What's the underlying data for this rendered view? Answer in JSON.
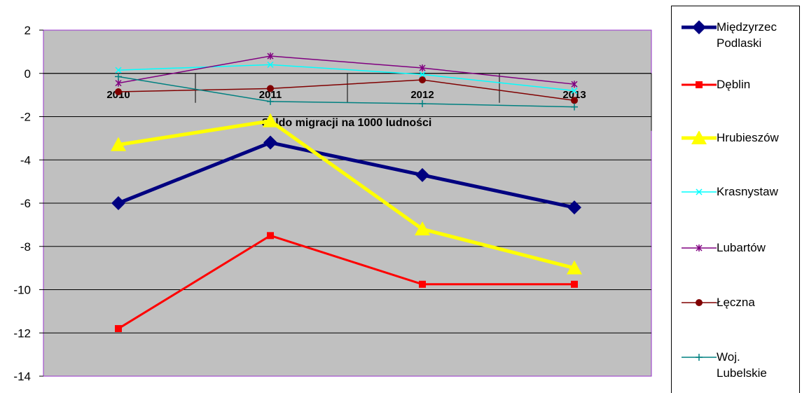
{
  "chart_data": {
    "type": "line",
    "title": "Saldo migracji na 1000 ludności",
    "categories": [
      "2010",
      "2011",
      "2012",
      "2013"
    ],
    "ylim": [
      -14,
      2
    ],
    "yticks": [
      "2",
      "0",
      "-2",
      "-4",
      "-6",
      "-8",
      "-10",
      "-12",
      "-14"
    ],
    "grid": true,
    "legend_position": "right",
    "plot_background": "#c0c0c0",
    "series": [
      {
        "name": "Międzyrzec Podlaski",
        "color": "#000080",
        "marker": "diamond",
        "values": [
          -6.0,
          -3.2,
          -4.7,
          -6.2
        ]
      },
      {
        "name": "Dęblin",
        "color": "#ff0000",
        "marker": "square",
        "values": [
          -11.8,
          -7.5,
          -9.75,
          -9.75
        ]
      },
      {
        "name": "Hrubieszów",
        "color": "#ffff00",
        "marker": "triangle",
        "values": [
          -3.3,
          -2.2,
          -7.2,
          -9.0
        ]
      },
      {
        "name": "Krasnystaw",
        "color": "#00ffff",
        "marker": "x",
        "values": [
          0.15,
          0.4,
          -0.05,
          -0.8
        ]
      },
      {
        "name": "Lubartów",
        "color": "#800080",
        "marker": "star",
        "values": [
          -0.45,
          0.8,
          0.25,
          -0.5
        ]
      },
      {
        "name": "Łęczna",
        "color": "#800000",
        "marker": "circle",
        "values": [
          -0.85,
          -0.7,
          -0.3,
          -1.25
        ]
      },
      {
        "name": "Woj. Lubelskie",
        "color": "#008080",
        "marker": "plus",
        "values": [
          -0.15,
          -1.3,
          -1.4,
          -1.55
        ]
      }
    ]
  }
}
